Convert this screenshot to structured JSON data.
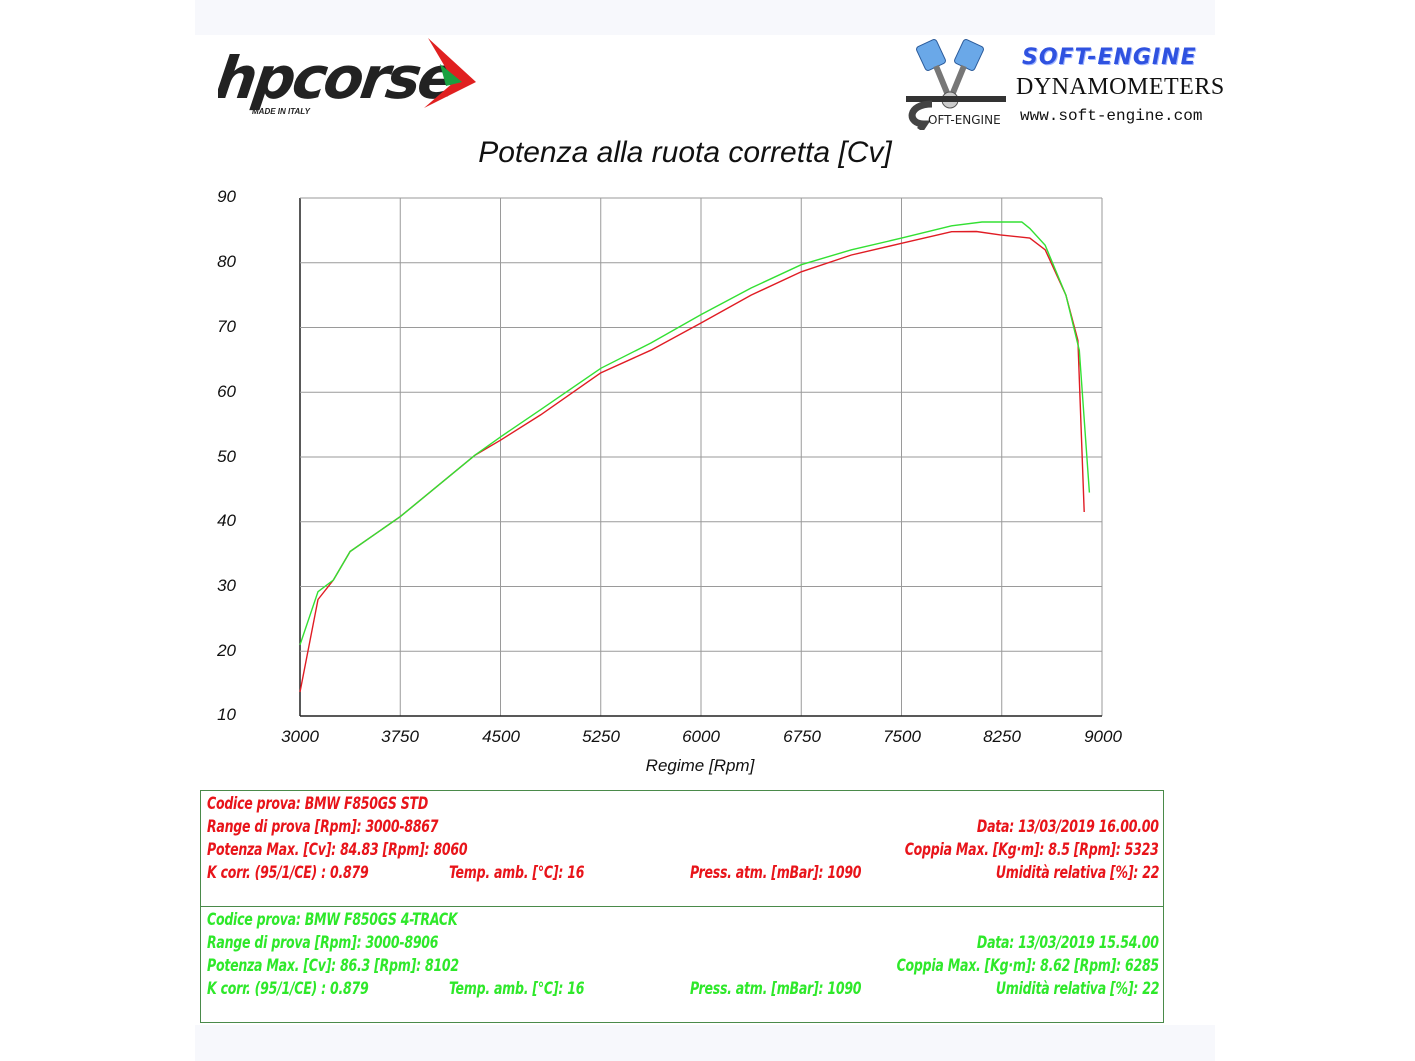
{
  "header": {
    "left_logo": {
      "brand": "hpcorse",
      "tagline": "MADE IN ITALY"
    },
    "right_logo": {
      "brand": "SOFT-ENGINE",
      "subtitle": "DYNAMOMETERS",
      "url": "www.soft-engine.com",
      "emblem_text": "OFT-ENGINE"
    }
  },
  "chart_data": {
    "type": "line",
    "title": "Potenza alla ruota corretta [Cv]",
    "xlabel": "Regime [Rpm]",
    "ylabel": "",
    "xlim": [
      3000,
      9000
    ],
    "ylim": [
      10,
      90
    ],
    "xticks": [
      "3000",
      "3750",
      "4500",
      "5250",
      "6000",
      "6750",
      "7500",
      "8250",
      "9000"
    ],
    "yticks": [
      "90",
      "80",
      "70",
      "60",
      "50",
      "40",
      "30",
      "20",
      "10"
    ],
    "grid": true,
    "legend_position": "none",
    "series": [
      {
        "name": "BMW F850GS STD",
        "color": "#e01c24",
        "x": [
          3000,
          3135,
          3250,
          3375,
          3750,
          4310,
          4500,
          4800,
          5250,
          5625,
          6000,
          6375,
          6750,
          7125,
          7500,
          7875,
          8060,
          8240,
          8460,
          8575,
          8730,
          8820,
          8867
        ],
        "y": [
          13.7,
          28.0,
          31.0,
          35.4,
          40.8,
          50.3,
          52.6,
          56.5,
          63.0,
          66.5,
          70.7,
          75.0,
          78.6,
          81.2,
          83.0,
          84.8,
          84.83,
          84.3,
          83.8,
          82.0,
          75.0,
          68.0,
          41.5
        ]
      },
      {
        "name": "BMW F850GS 4-TRACK",
        "color": "#33e033",
        "x": [
          3000,
          3135,
          3250,
          3375,
          3750,
          4310,
          4500,
          4800,
          5250,
          5625,
          6000,
          6375,
          6750,
          7125,
          7500,
          7875,
          8102,
          8400,
          8460,
          8575,
          8730,
          8830,
          8906
        ],
        "y": [
          21.0,
          29.2,
          31.0,
          35.4,
          40.8,
          50.3,
          53.1,
          57.3,
          63.7,
          67.6,
          72.0,
          76.1,
          79.7,
          82.0,
          83.8,
          85.7,
          86.3,
          86.3,
          85.3,
          82.7,
          75.0,
          66.5,
          44.5
        ]
      }
    ]
  },
  "info": {
    "std": {
      "codice": "Codice prova: BMW F850GS STD",
      "range": "Range di prova [Rpm]: 3000-8867",
      "data": "Data: 13/03/2019   16.00.00",
      "potenza": "Potenza Max. [Cv]: 84.83   [Rpm]: 8060",
      "coppia": "Coppia Max. [Kg·m]: 8.5   [Rpm]: 5323",
      "kcorr": "K corr. (95/1/CE) : 0.879",
      "temp": "Temp. amb. [°C]: 16",
      "press": "Press. atm. [mBar]: 1090",
      "umidita": "Umidità relativa [%]: 22"
    },
    "track": {
      "codice": "Codice prova: BMW F850GS 4-TRACK",
      "range": "Range di prova [Rpm]: 3000-8906",
      "data": "Data: 13/03/2019   15.54.00",
      "potenza": "Potenza Max. [Cv]: 86.3   [Rpm]: 8102",
      "coppia": "Coppia Max. [Kg·m]: 8.62   [Rpm]: 6285",
      "kcorr": "K corr. (95/1/CE) : 0.879",
      "temp": "Temp. amb. [°C]: 16",
      "press": "Press. atm. [mBar]: 1090",
      "umidita": "Umidità relativa [%]: 22"
    }
  },
  "colors": {
    "red": "#e8141a",
    "green": "#2ee82a",
    "grid": "#9a9a9a",
    "box_border": "#4a8a4a"
  }
}
